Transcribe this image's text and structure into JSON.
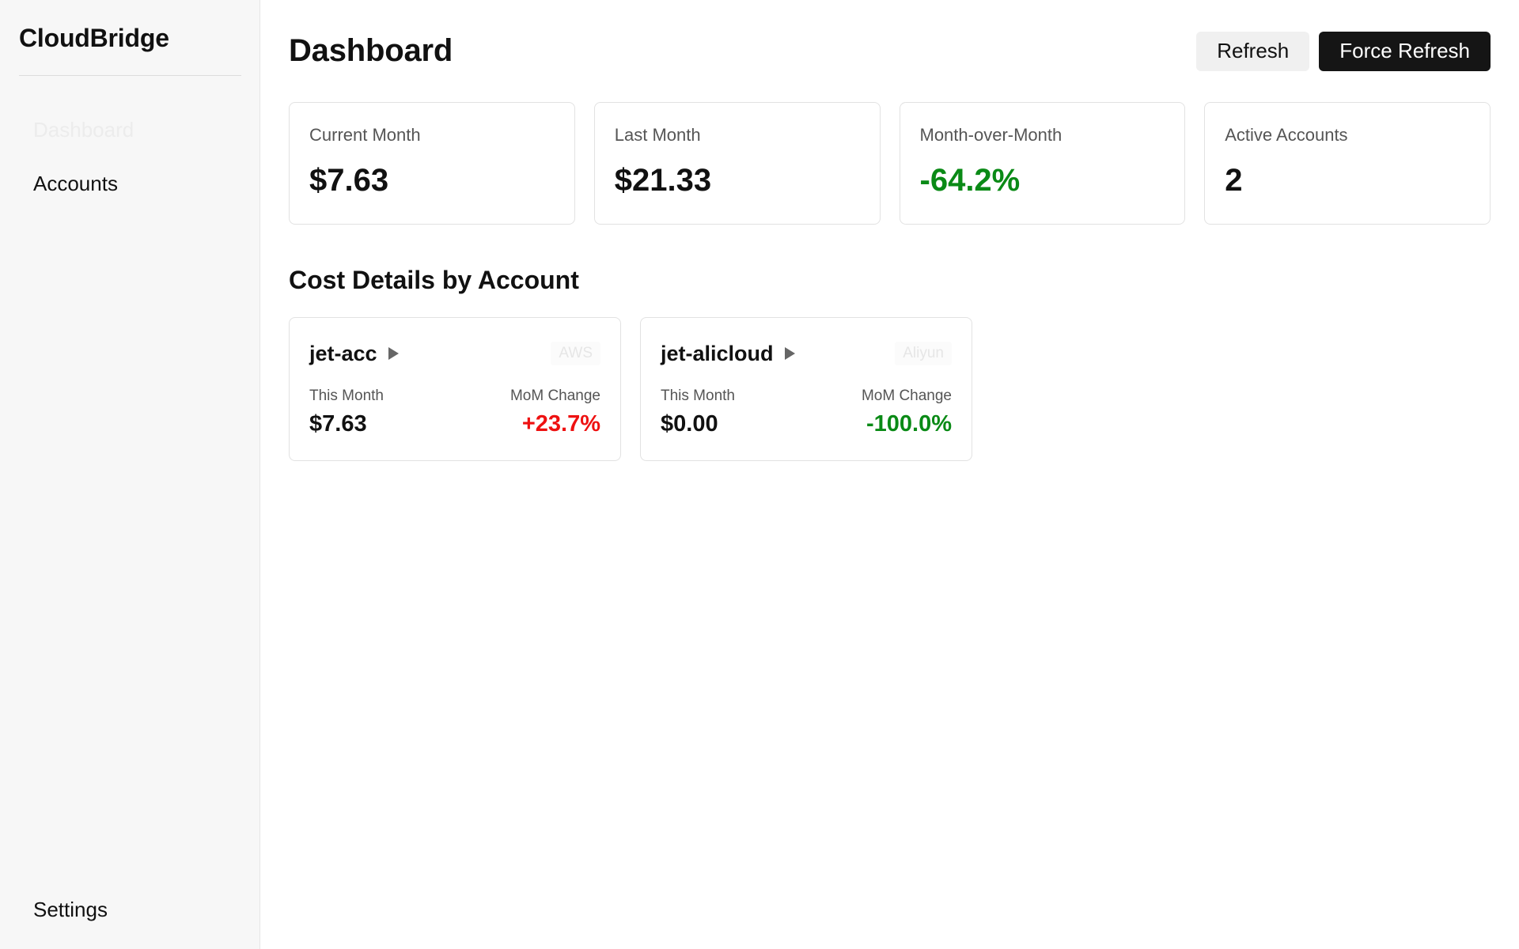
{
  "app": {
    "name": "CloudBridge"
  },
  "sidebar": {
    "items": [
      {
        "label": "Dashboard"
      },
      {
        "label": "Accounts"
      }
    ],
    "bottom_item": {
      "label": "Settings"
    }
  },
  "header": {
    "title": "Dashboard",
    "refresh_label": "Refresh",
    "force_refresh_label": "Force Refresh"
  },
  "summary": [
    {
      "label": "Current Month",
      "value": "$7.63"
    },
    {
      "label": "Last Month",
      "value": "$21.33"
    },
    {
      "label": "Month-over-Month",
      "value": "-64.2%",
      "color": "#0a8a16"
    },
    {
      "label": "Active Accounts",
      "value": "2"
    }
  ],
  "cost_details": {
    "title": "Cost Details by Account",
    "accounts": [
      {
        "name": "jet-acc",
        "provider": "AWS",
        "this_month_label": "This Month",
        "this_month": "$7.63",
        "mom_label": "MoM Change",
        "mom": "+23.7%",
        "mom_color": "#ee1111"
      },
      {
        "name": "jet-alicloud",
        "provider": "Aliyun",
        "this_month_label": "This Month",
        "this_month": "$0.00",
        "mom_label": "MoM Change",
        "mom": "-100.0%",
        "mom_color": "#0a8a16"
      }
    ]
  },
  "icons": {
    "account_expand": "play-icon"
  }
}
